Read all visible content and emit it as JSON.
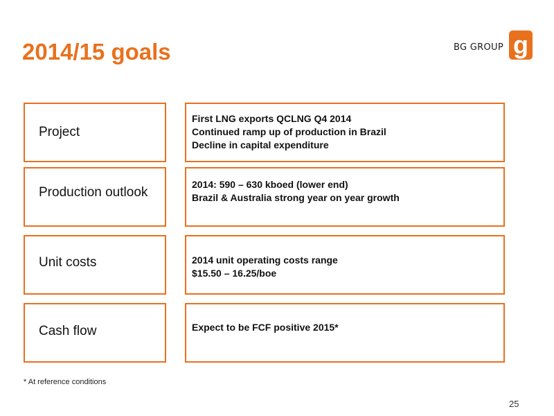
{
  "slide": {
    "title": "2014/15 goals",
    "brand_text": "BG GROUP",
    "logo_icon": "bg-logo-icon",
    "accent_color": "#e8711e",
    "footnote": "* At reference conditions",
    "page_number": "25"
  },
  "rows": [
    {
      "label": "Project",
      "lines": [
        "First LNG exports QCLNG Q4 2014",
        "Continued ramp up of production in Brazil",
        "Decline in capital expenditure"
      ]
    },
    {
      "label": "Production outlook",
      "lines": [
        "2014: 590 – 630 kboed (lower end)",
        "Brazil & Australia strong year on year growth"
      ]
    },
    {
      "label": "Unit costs",
      "lines": [
        "2014 unit operating costs range",
        "$15.50 – 16.25/boe"
      ]
    },
    {
      "label": "Cash flow",
      "lines": [
        "Expect to be FCF positive 2015*"
      ]
    }
  ]
}
